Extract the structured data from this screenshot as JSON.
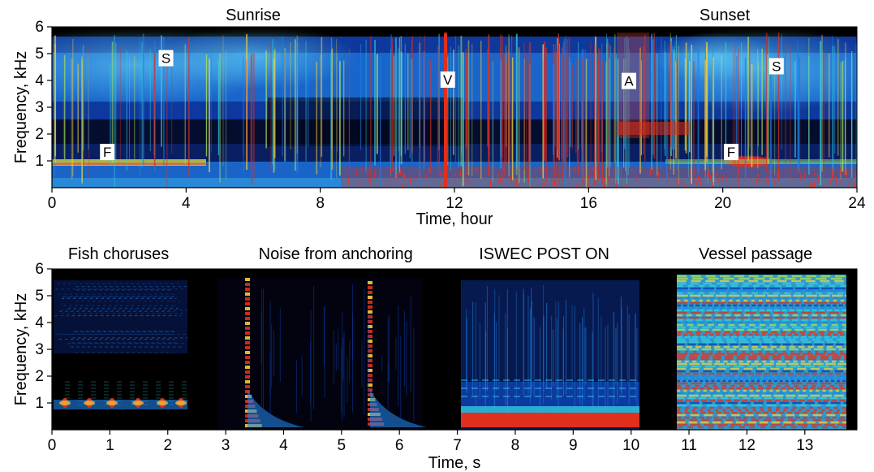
{
  "chart_data": [
    {
      "type": "heatmap",
      "title": "",
      "xlabel": "Time, hour",
      "ylabel": "Frequency, kHz",
      "xlim": [
        0,
        24
      ],
      "ylim": [
        0,
        6
      ],
      "x_ticks": [
        0,
        4,
        8,
        12,
        16,
        20,
        24
      ],
      "y_ticks": [
        1,
        2,
        3,
        4,
        5,
        6
      ],
      "colormap": [
        "#000000",
        "#06133f",
        "#0b3fb0",
        "#1f82e6",
        "#38d0d8",
        "#a9e35a",
        "#f2d23a",
        "#e0301c"
      ],
      "headers": [
        {
          "text": "Sunrise",
          "x": 6.0
        },
        {
          "text": "Sunset",
          "x": 20.8
        }
      ],
      "annotations": [
        {
          "text": "S",
          "x": 3.4,
          "y": 4.8
        },
        {
          "text": "V",
          "x": 11.8,
          "y": 4.0
        },
        {
          "text": "A",
          "x": 17.2,
          "y": 3.95
        },
        {
          "text": "S",
          "x": 21.6,
          "y": 4.5
        },
        {
          "text": "F",
          "x": 1.65,
          "y": 1.3
        },
        {
          "text": "F",
          "x": 20.25,
          "y": 1.3
        }
      ]
    },
    {
      "type": "heatmap",
      "title": "",
      "xlabel": "Time, s",
      "ylabel": "Frequency, kHz",
      "xlim": [
        0,
        13.9
      ],
      "ylim": [
        0,
        6
      ],
      "x_ticks": [
        0,
        1,
        2,
        3,
        4,
        5,
        6,
        7,
        8,
        9,
        10,
        11,
        12,
        13
      ],
      "y_ticks": [
        1,
        2,
        3,
        4,
        5,
        6
      ],
      "segments": [
        {
          "label": "Fish choruses",
          "start": 0.0,
          "end": 2.3
        },
        {
          "label": "Noise from anchoring",
          "start": 3.0,
          "end": 6.8
        },
        {
          "label": "ISWEC POST ON",
          "start": 7.0,
          "end": 10.0
        },
        {
          "label": "Vessel passage",
          "start": 10.7,
          "end": 13.6
        }
      ]
    }
  ]
}
